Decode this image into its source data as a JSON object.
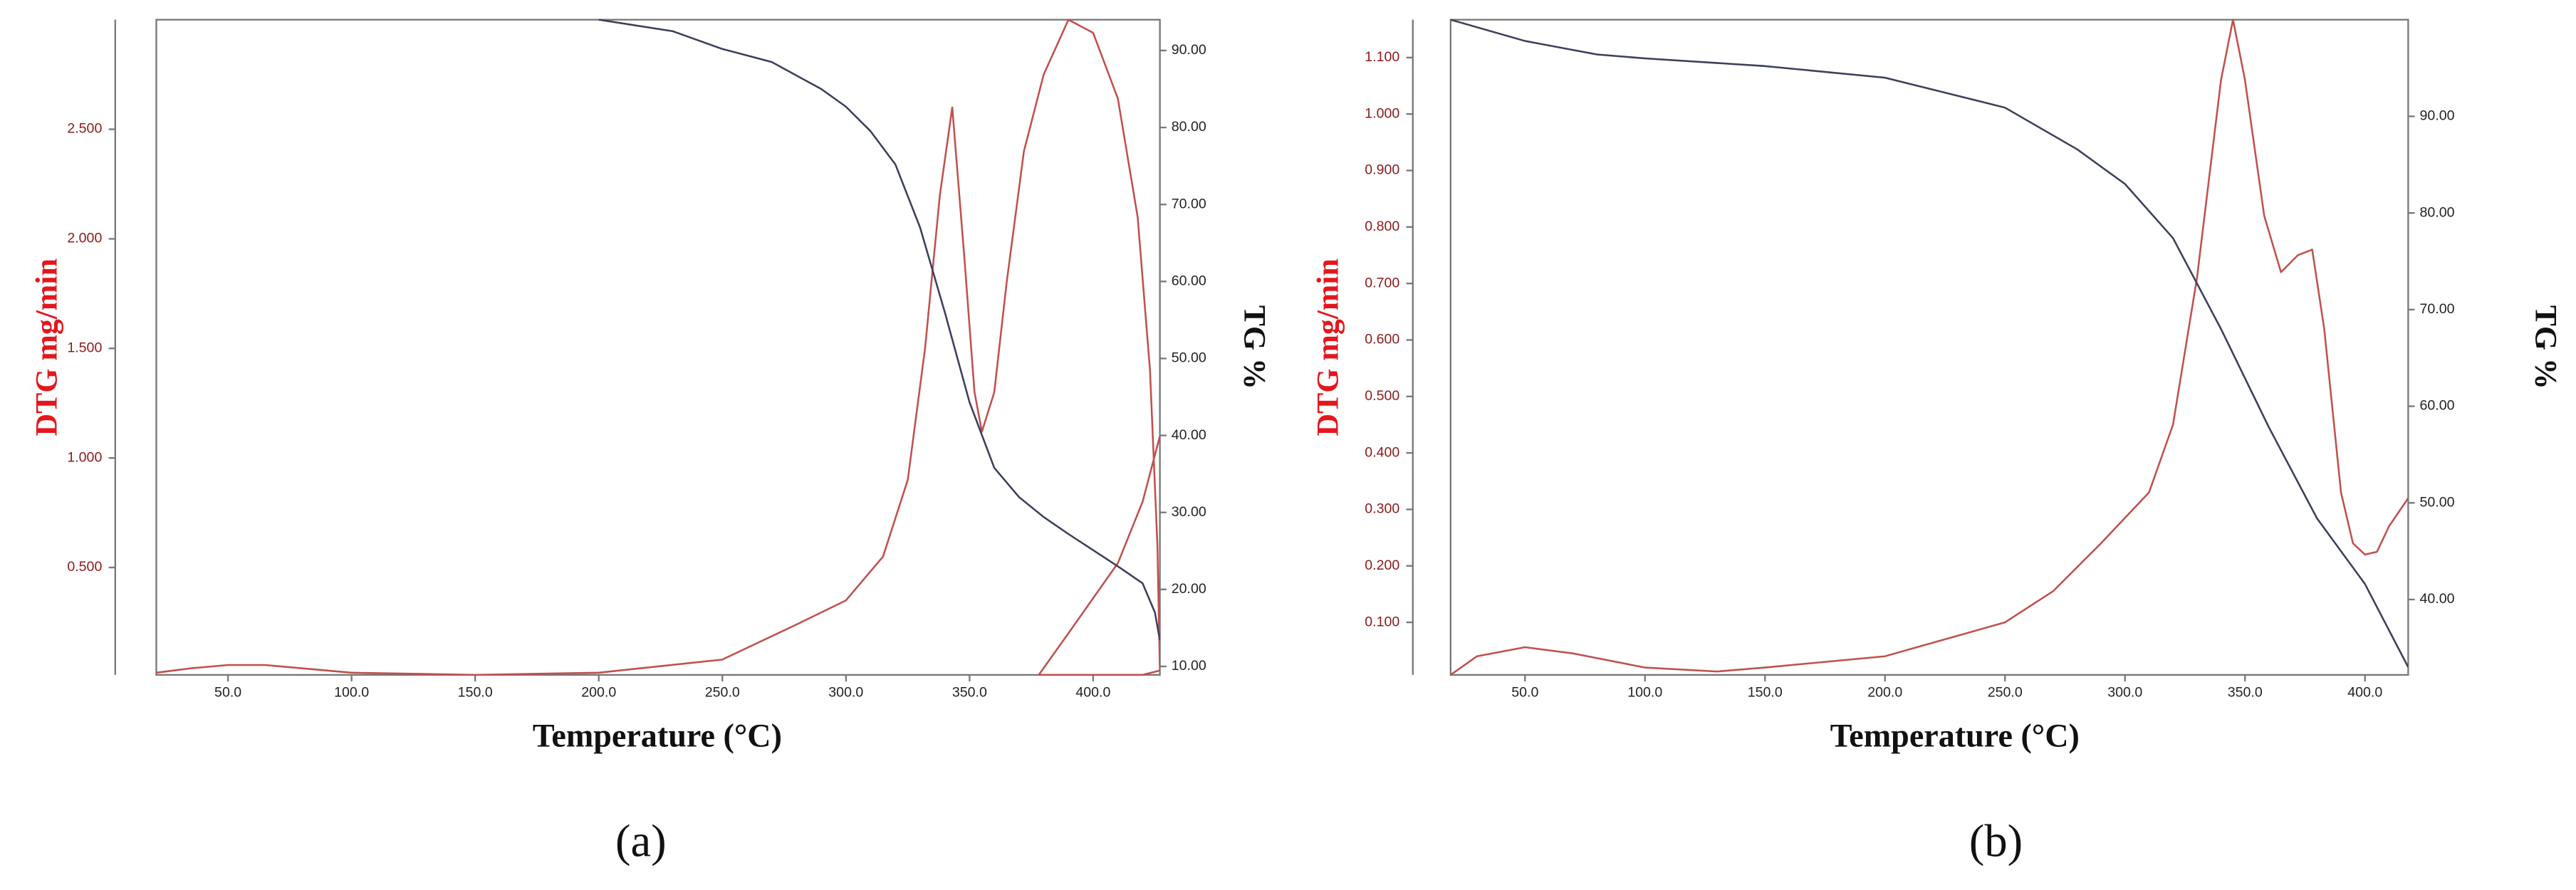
{
  "chart_data": [
    {
      "type": "line",
      "caption": "(a)",
      "xlabel": "Temperature (°C)",
      "ylabel": "DTG mg/min",
      "y2label": "TG %",
      "xlim": [
        21,
        427
      ],
      "xticks": [
        {
          "value": 50,
          "label": "50.0"
        },
        {
          "value": 100,
          "label": "100.0"
        },
        {
          "value": 150,
          "label": "150.0"
        },
        {
          "value": 200,
          "label": "200.0"
        },
        {
          "value": 250,
          "label": "250.0"
        },
        {
          "value": 300,
          "label": "300.0"
        },
        {
          "value": 350,
          "label": "350.0"
        },
        {
          "value": 400,
          "label": "400.0"
        }
      ],
      "ylim": [
        0.01,
        3.0
      ],
      "yticks": [
        {
          "value": 0.5,
          "label": "0.500"
        },
        {
          "value": 1,
          "label": "1.000"
        },
        {
          "value": 1.5,
          "label": "1.500"
        },
        {
          "value": 2,
          "label": "2.000"
        },
        {
          "value": 2.5,
          "label": "2.500"
        }
      ],
      "y2lim": [
        8.9,
        94
      ],
      "y2ticks": [
        {
          "value": 10,
          "label": "10.00"
        },
        {
          "value": 20,
          "label": "20.00"
        },
        {
          "value": 30,
          "label": "30.00"
        },
        {
          "value": 40,
          "label": "40.00"
        },
        {
          "value": 50,
          "label": "50.00"
        },
        {
          "value": 60,
          "label": "60.00"
        },
        {
          "value": 70,
          "label": "70.00"
        },
        {
          "value": 80,
          "label": "80.00"
        },
        {
          "value": 90,
          "label": "90.00"
        }
      ],
      "series": [
        {
          "color": "#c0504d",
          "x": [
            21,
            35,
            50,
            65,
            100,
            150,
            200,
            250,
            280,
            300,
            315,
            325,
            332,
            338,
            343,
            348,
            352,
            355,
            360,
            365,
            372,
            380,
            390,
            400,
            410,
            418,
            423,
            426,
            427,
            420,
            378,
            390,
            400,
            410,
            420,
            427
          ],
          "values": [
            0.02,
            0.04,
            0.055,
            0.055,
            0.02,
            0.01,
            0.02,
            0.08,
            0.24,
            0.35,
            0.55,
            0.9,
            1.5,
            2.2,
            2.6,
            1.9,
            1.3,
            1.12,
            1.3,
            1.8,
            2.4,
            2.75,
            3.0,
            2.94,
            2.64,
            2.1,
            1.4,
            0.6,
            0.03,
            0.01,
            0.01,
            0.2,
            0.36,
            0.52,
            0.8,
            1.1
          ]
        },
        {
          "color": "#3a3f5c",
          "axis": "y2",
          "x": [
            200,
            230,
            250,
            270,
            290,
            300,
            310,
            320,
            330,
            340,
            350,
            360,
            370,
            380,
            390,
            400,
            410,
            420,
            425,
            427
          ],
          "values": [
            94,
            92.5,
            90.2,
            88.5,
            85,
            82.7,
            79.5,
            75.2,
            67,
            56,
            44.3,
            35.8,
            32,
            29.4,
            27.2,
            25.1,
            23,
            20.8,
            17,
            13.4
          ]
        }
      ]
    },
    {
      "type": "line",
      "caption": "(b)",
      "xlabel": "Temperature (°C)",
      "ylabel": "DTG mg/min",
      "y2label": "TG %",
      "xlim": [
        19,
        418
      ],
      "xticks": [
        {
          "value": 50,
          "label": "50.0"
        },
        {
          "value": 100,
          "label": "100.0"
        },
        {
          "value": 150,
          "label": "150.0"
        },
        {
          "value": 200,
          "label": "200.0"
        },
        {
          "value": 250,
          "label": "250.0"
        },
        {
          "value": 300,
          "label": "300.0"
        },
        {
          "value": 350,
          "label": "350.0"
        },
        {
          "value": 400,
          "label": "400.0"
        }
      ],
      "ylim": [
        0.007,
        1.167
      ],
      "yticks": [
        {
          "value": 0.1,
          "label": "0.100"
        },
        {
          "value": 0.2,
          "label": "0.200"
        },
        {
          "value": 0.3,
          "label": "0.300"
        },
        {
          "value": 0.4,
          "label": "0.400"
        },
        {
          "value": 0.5,
          "label": "0.500"
        },
        {
          "value": 0.6,
          "label": "0.600"
        },
        {
          "value": 0.7,
          "label": "0.700"
        },
        {
          "value": 0.8,
          "label": "0.800"
        },
        {
          "value": 0.9,
          "label": "0.900"
        },
        {
          "value": 1,
          "label": "1.000"
        },
        {
          "value": 1.1,
          "label": "1.100"
        }
      ],
      "y2lim": [
        32.2,
        100
      ],
      "y2ticks": [
        {
          "value": 40,
          "label": "40.00"
        },
        {
          "value": 50,
          "label": "50.00"
        },
        {
          "value": 60,
          "label": "60.00"
        },
        {
          "value": 70,
          "label": "70.00"
        },
        {
          "value": 80,
          "label": "80.00"
        },
        {
          "value": 90,
          "label": "90.00"
        }
      ],
      "series": [
        {
          "color": "#c0504d",
          "x": [
            19,
            30,
            50,
            70,
            100,
            130,
            150,
            200,
            250,
            270,
            290,
            310,
            320,
            330,
            340,
            345,
            350,
            358,
            365,
            372,
            378,
            383,
            390,
            395,
            400,
            405,
            410,
            418
          ],
          "values": [
            0.007,
            0.04,
            0.056,
            0.045,
            0.02,
            0.013,
            0.02,
            0.04,
            0.1,
            0.155,
            0.24,
            0.33,
            0.45,
            0.71,
            1.06,
            1.167,
            1.06,
            0.82,
            0.72,
            0.75,
            0.76,
            0.62,
            0.33,
            0.24,
            0.22,
            0.225,
            0.27,
            0.32
          ]
        },
        {
          "color": "#3a3f5c",
          "axis": "y2",
          "x": [
            19,
            50,
            80,
            100,
            150,
            200,
            250,
            280,
            300,
            320,
            340,
            360,
            380,
            400,
            418
          ],
          "values": [
            100,
            97.8,
            96.4,
            96,
            95.2,
            94,
            90.9,
            86.6,
            83,
            77.4,
            68,
            57.8,
            48.4,
            41.6,
            33
          ]
        }
      ]
    }
  ]
}
